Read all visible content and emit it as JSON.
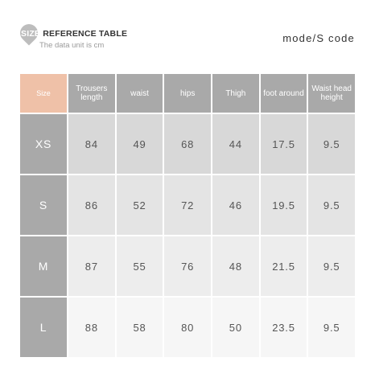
{
  "header": {
    "badge_text": "SIZE",
    "title_rest": " REFERENCE TABLE",
    "subtitle": "The data unit is cm",
    "mode": "mode/S code"
  },
  "table": {
    "columns": [
      "Size",
      "Trousers length",
      "waist",
      "hips",
      "Thigh",
      "foot around",
      "Waist head height"
    ],
    "rows": [
      {
        "size": "XS",
        "values": [
          "84",
          "49",
          "68",
          "44",
          "17.5",
          "9.5"
        ]
      },
      {
        "size": "S",
        "values": [
          "86",
          "52",
          "72",
          "46",
          "19.5",
          "9.5"
        ]
      },
      {
        "size": "M",
        "values": [
          "87",
          "55",
          "76",
          "48",
          "21.5",
          "9.5"
        ]
      },
      {
        "size": "L",
        "values": [
          "88",
          "58",
          "80",
          "50",
          "23.5",
          "9.5"
        ]
      }
    ]
  },
  "colors": {
    "header_bg": "#a9a9a9",
    "size_header_bg": "#efc1a8",
    "text": "#555555"
  }
}
